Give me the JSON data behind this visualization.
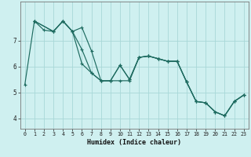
{
  "xlabel": "Humidex (Indice chaleur)",
  "bg_color": "#cff0f0",
  "line_color": "#1e6b60",
  "grid_color": "#a8d8d8",
  "line1_x": [
    0,
    1,
    2,
    3,
    4,
    5,
    6,
    7,
    8,
    9,
    10,
    11,
    12,
    13,
    14,
    15,
    16,
    17,
    18,
    19,
    20,
    21,
    22,
    23
  ],
  "line1_y": [
    5.3,
    7.75,
    7.4,
    7.35,
    7.75,
    7.35,
    6.1,
    5.75,
    5.45,
    5.45,
    6.05,
    5.5,
    6.35,
    6.4,
    6.3,
    6.2,
    6.2,
    5.4,
    4.65,
    4.6,
    4.25,
    4.1,
    4.65,
    4.9
  ],
  "line2_x": [
    1,
    3,
    4,
    5,
    6,
    7,
    8,
    9,
    10,
    11,
    12,
    13,
    14,
    15,
    16,
    17,
    18,
    19,
    20,
    21,
    22,
    23
  ],
  "line2_y": [
    7.75,
    7.35,
    7.75,
    7.35,
    7.5,
    6.6,
    5.45,
    5.45,
    5.45,
    5.45,
    6.35,
    6.4,
    6.3,
    6.2,
    6.2,
    5.4,
    4.65,
    4.6,
    4.25,
    4.1,
    4.65,
    4.9
  ],
  "line3_x": [
    1,
    3,
    4,
    5,
    6,
    7,
    8,
    9,
    10,
    11,
    12,
    13,
    14,
    15,
    16,
    17,
    18,
    19,
    20,
    21,
    22,
    23
  ],
  "line3_y": [
    7.75,
    7.35,
    7.75,
    7.35,
    6.65,
    5.75,
    5.45,
    5.45,
    6.05,
    5.5,
    6.35,
    6.4,
    6.3,
    6.2,
    6.2,
    5.4,
    4.65,
    4.6,
    4.25,
    4.1,
    4.65,
    4.9
  ],
  "ylim": [
    3.6,
    8.5
  ],
  "yticks": [
    4,
    5,
    6,
    7
  ],
  "xlim": [
    -0.5,
    23.5
  ],
  "xticks": [
    0,
    1,
    2,
    3,
    4,
    5,
    6,
    7,
    8,
    9,
    10,
    11,
    12,
    13,
    14,
    15,
    16,
    17,
    18,
    19,
    20,
    21,
    22,
    23
  ]
}
